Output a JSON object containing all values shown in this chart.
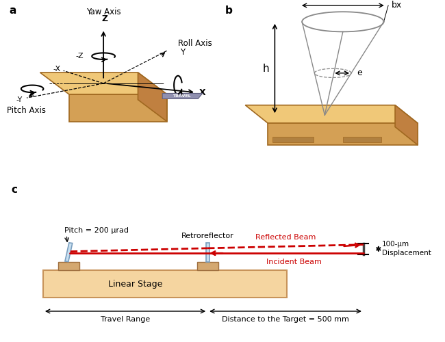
{
  "bg_color": "#ffffff",
  "label_a": "a",
  "label_b": "b",
  "label_c": "c",
  "panel_a": {
    "stage_color": "#f0c878",
    "stage_color_front": "#d4a055",
    "stage_color_right": "#c08040",
    "stage_edge_color": "#a06820",
    "travel_color": "#9090b0",
    "travel_edge": "#606080"
  },
  "panel_b": {
    "stage_color": "#f0c878",
    "stage_color_front": "#d4a055",
    "stage_color_right": "#c08040",
    "stage_edge_color": "#a06820",
    "cone_color": "#888888"
  },
  "panel_c": {
    "stage_color": "#f5d5a0",
    "stage_edge_color": "#c8945a",
    "pedestal_color": "#d4a870",
    "pedestal_edge": "#a07040",
    "mirror_color": "#c8dff0",
    "mirror_edge_color": "#7a9fbf",
    "beam_color": "#cc0000",
    "labels": {
      "pitch": "Pitch = 200 μrad",
      "retroreflector": "Retroreflector",
      "reflected": "Reflected Beam",
      "incident": "Incident Beam",
      "stage": "Linear Stage",
      "travel": "Travel Range",
      "distance": "Distance to the Target = 500 mm",
      "displacement": "100-μm\nDisplacement"
    }
  }
}
